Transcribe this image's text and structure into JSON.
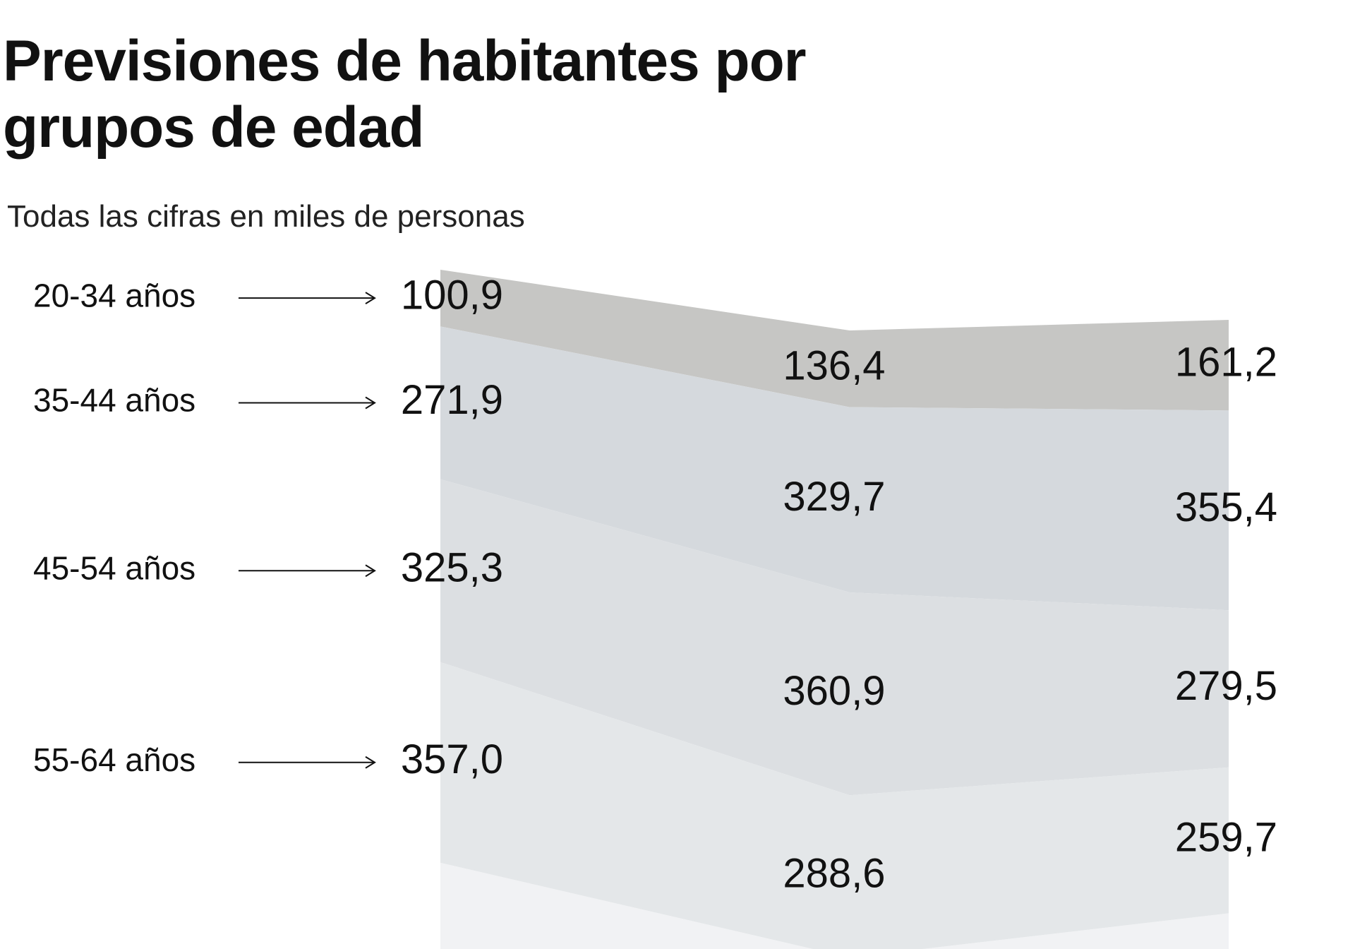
{
  "chart_data": {
    "type": "stacked-area",
    "title": "Previsiones de habitantes por grupos de edad",
    "subtitle": "Todas las cifras en miles de personas",
    "categories": [
      null,
      null,
      null
    ],
    "series": [
      {
        "name": "20-34 años",
        "color": "#c6c6c4",
        "values": [
          100.9,
          136.4,
          161.2
        ],
        "value_labels": [
          "100,9",
          "136,4",
          "161,2"
        ]
      },
      {
        "name": "35-44 años",
        "color": "#d5d9dd",
        "values": [
          271.9,
          329.7,
          355.4
        ],
        "value_labels": [
          "271,9",
          "329,7",
          "355,4"
        ]
      },
      {
        "name": "45-54 años",
        "color": "#dcdfe2",
        "values": [
          325.3,
          360.9,
          279.5
        ],
        "value_labels": [
          "325,3",
          "360,9",
          "279,5"
        ]
      },
      {
        "name": "55-64 años",
        "color": "#e4e7e9",
        "values": [
          357.0,
          288.6,
          259.7
        ],
        "value_labels": [
          "357,0",
          "288,6",
          "259,7"
        ]
      }
    ]
  }
}
